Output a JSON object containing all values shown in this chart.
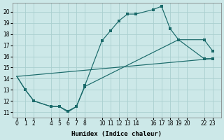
{
  "xlabel": "Humidex (Indice chaleur)",
  "bg_color": "#cce8e8",
  "grid_color": "#aacfcf",
  "line_color": "#1a6a6a",
  "xlim": [
    -0.5,
    24.0
  ],
  "ylim": [
    10.5,
    20.8
  ],
  "xticks": [
    0,
    1,
    2,
    4,
    5,
    6,
    7,
    8,
    10,
    11,
    12,
    13,
    14,
    16,
    17,
    18,
    19,
    20,
    22,
    23
  ],
  "yticks": [
    11,
    12,
    13,
    14,
    15,
    16,
    17,
    18,
    19,
    20
  ],
  "curve1_x": [
    0,
    1,
    2,
    4,
    5,
    6,
    7,
    8,
    10,
    11,
    12,
    13,
    14,
    16,
    17,
    18,
    19,
    22,
    23
  ],
  "curve1_y": [
    14.2,
    13.0,
    12.0,
    11.5,
    11.5,
    11.0,
    11.5,
    13.4,
    17.4,
    18.3,
    19.2,
    19.8,
    19.8,
    20.2,
    20.5,
    18.5,
    17.5,
    15.8,
    15.8
  ],
  "curve1_marked_x": [
    1,
    2,
    8,
    10,
    11,
    12,
    13,
    14,
    16,
    17,
    18,
    19,
    22,
    23
  ],
  "curve1_marked_y": [
    13.0,
    12.0,
    13.4,
    17.4,
    18.3,
    19.2,
    19.8,
    19.8,
    20.2,
    20.5,
    18.5,
    17.5,
    15.8,
    15.8
  ],
  "curve2_x": [
    0,
    1,
    2,
    4,
    5,
    6,
    7,
    8,
    19,
    22,
    23
  ],
  "curve2_y": [
    14.2,
    13.0,
    12.0,
    11.5,
    11.5,
    11.1,
    11.5,
    13.3,
    17.5,
    17.5,
    16.5
  ],
  "curve2_marked_x": [
    1,
    2,
    4,
    5,
    6,
    7,
    8,
    19,
    22,
    23
  ],
  "curve2_marked_y": [
    13.0,
    12.0,
    11.5,
    11.5,
    11.1,
    11.5,
    13.3,
    17.5,
    17.5,
    16.5
  ],
  "curve3_x": [
    0,
    23
  ],
  "curve3_y": [
    14.2,
    15.8
  ],
  "marker_size": 3.0
}
